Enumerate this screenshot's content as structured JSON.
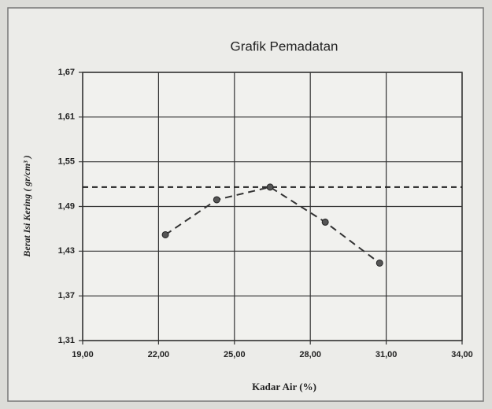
{
  "chart_data": {
    "type": "line",
    "title": "Grafik Pemadatan",
    "xlabel": "Kadar Air (%)",
    "ylabel": "Berat Isi Kering ( gr/cm³ )",
    "series": [
      {
        "x": [
          22.27,
          24.3,
          26.41,
          28.59,
          30.74
        ],
        "values": [
          1.452,
          1.499,
          1.516,
          1.469,
          1.414
        ],
        "color": "#333333"
      }
    ],
    "xlim": [
      19,
      34
    ],
    "xticks": [
      {
        "value": 19,
        "label": "19,00"
      },
      {
        "value": 22,
        "label": "22,00"
      },
      {
        "value": 25,
        "label": "25,00"
      },
      {
        "value": 28,
        "label": "28,00"
      },
      {
        "value": 31,
        "label": "31,00"
      },
      {
        "value": 34,
        "label": "34,00"
      }
    ],
    "ylim": [
      1.31,
      1.67
    ],
    "yticks": [
      {
        "value": 1.31,
        "label": "1,31"
      },
      {
        "value": 1.37,
        "label": "1,37"
      },
      {
        "value": 1.43,
        "label": "1,43"
      },
      {
        "value": 1.49,
        "label": "1,49"
      },
      {
        "value": 1.55,
        "label": "1,55"
      },
      {
        "value": 1.61,
        "label": "1,61"
      },
      {
        "value": 1.67,
        "label": "1,67"
      }
    ],
    "grid": true,
    "reference_line": {
      "y": 1.516
    }
  }
}
